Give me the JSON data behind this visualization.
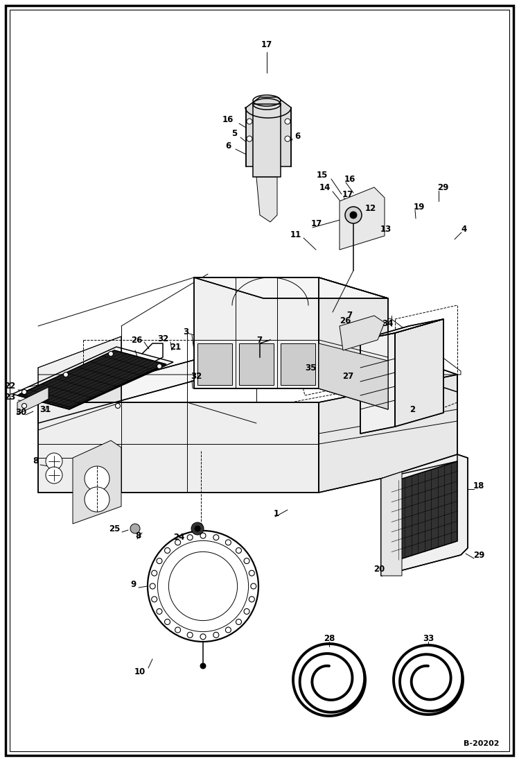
{
  "bg_color": "#ffffff",
  "border_color": "#000000",
  "line_color": "#000000",
  "fig_width": 7.49,
  "fig_height": 10.97,
  "watermark": "B-20202",
  "dpi": 100
}
